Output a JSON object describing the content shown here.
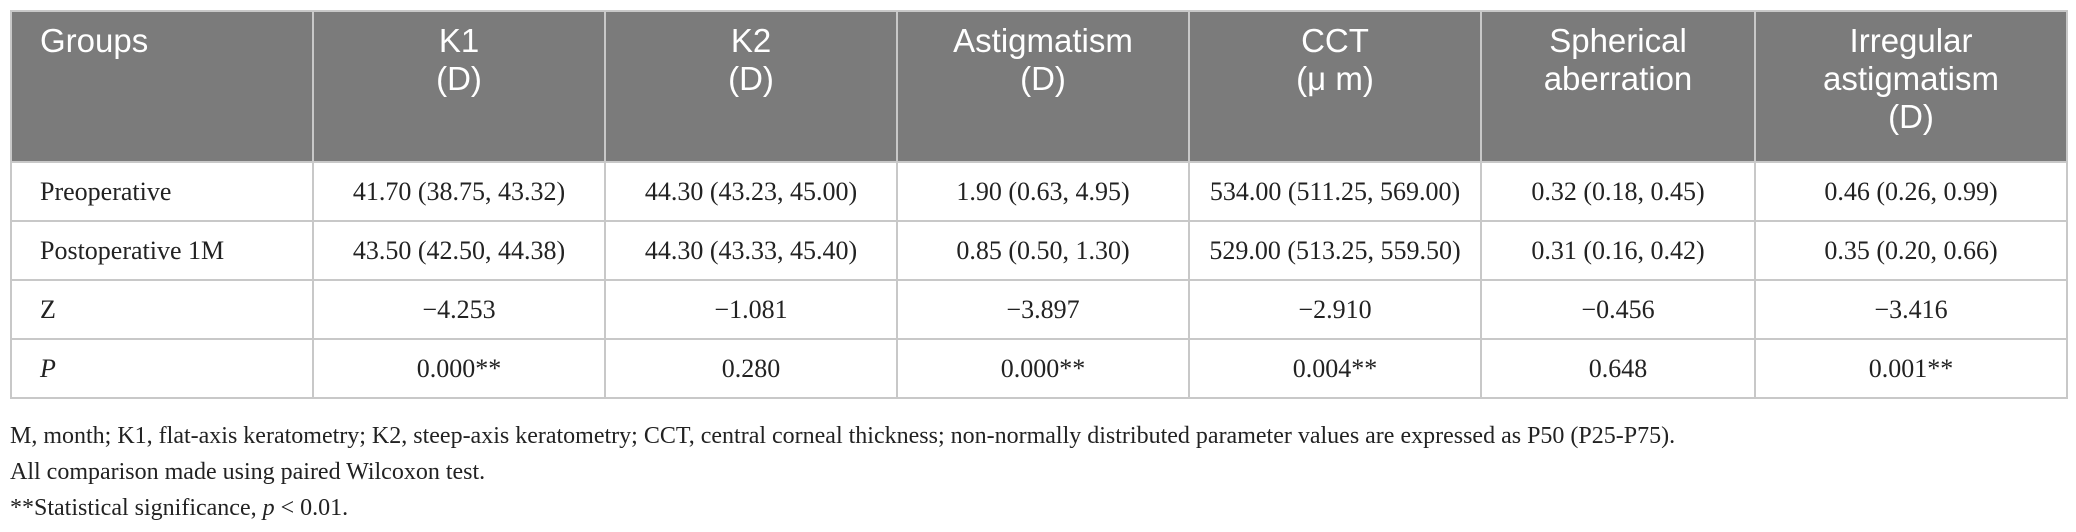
{
  "table": {
    "headers": [
      {
        "lines": [
          "Groups"
        ]
      },
      {
        "lines": [
          "K1",
          "(D)"
        ]
      },
      {
        "lines": [
          "K2",
          "(D)"
        ]
      },
      {
        "lines": [
          "Astigmatism",
          "(D)"
        ]
      },
      {
        "lines": [
          "CCT",
          "(μ m)"
        ]
      },
      {
        "lines": [
          "Spherical",
          "aberration"
        ]
      },
      {
        "lines": [
          "Irregular",
          "astigmatism",
          "(D)"
        ]
      }
    ],
    "rows": [
      {
        "label": "Preoperative",
        "cells": [
          "41.70 (38.75, 43.32)",
          "44.30 (43.23, 45.00)",
          "1.90 (0.63, 4.95)",
          "534.00 (511.25, 569.00)",
          "0.32 (0.18, 0.45)",
          "0.46 (0.26, 0.99)"
        ]
      },
      {
        "label": "Postoperative 1M",
        "cells": [
          "43.50 (42.50, 44.38)",
          "44.30 (43.33, 45.40)",
          "0.85 (0.50, 1.30)",
          "529.00 (513.25, 559.50)",
          "0.31 (0.16, 0.42)",
          "0.35 (0.20, 0.66)"
        ]
      },
      {
        "label": "Z",
        "cells": [
          "−4.253",
          "−1.081",
          "−3.897",
          "−2.910",
          "−0.456",
          "−3.416"
        ]
      },
      {
        "label": "P",
        "cells": [
          "0.000**",
          "0.280",
          "0.000**",
          "0.004**",
          "0.648",
          "0.001**"
        ]
      }
    ]
  },
  "notes": {
    "line1": "M, month; K1, flat-axis keratometry; K2, steep-axis keratometry; CCT, central corneal thickness; non-normally distributed parameter values are expressed as P50 (P25-P75).",
    "line2": "All comparison made using paired Wilcoxon test.",
    "line3_prefix": "**Statistical significance, ",
    "line3_var": "p",
    "line3_suffix": " < 0.01."
  },
  "colors": {
    "header_bg": "#7b7b7b",
    "header_text": "#ffffff",
    "grid": "#c8c8c8",
    "body_text": "#222222"
  }
}
